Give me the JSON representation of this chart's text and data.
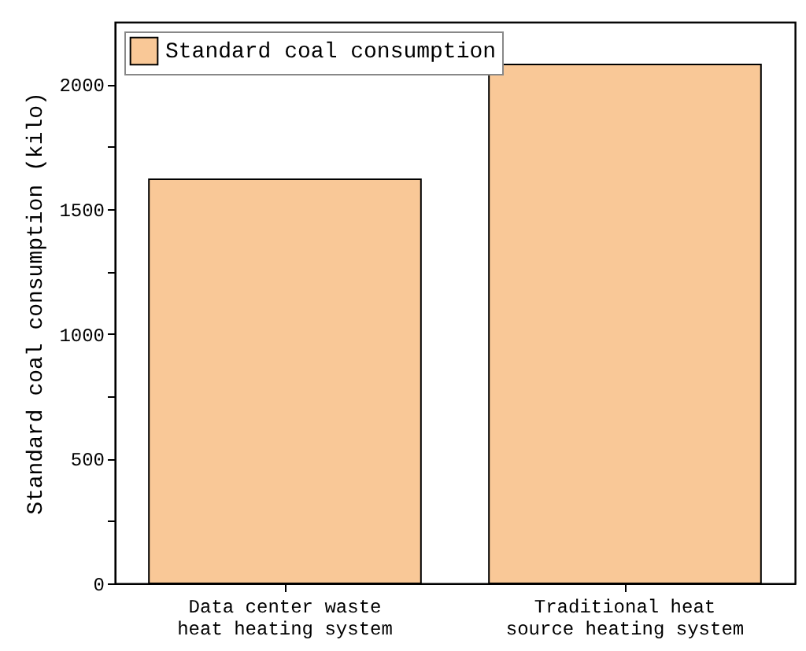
{
  "chart_data": {
    "type": "bar",
    "ylabel": "Standard coal consumption (kilo)",
    "categories": [
      "Data center waste heat heating system",
      "Traditional heat source heating system"
    ],
    "series": [
      {
        "name": "Standard coal consumption",
        "color": "#f9c897",
        "values": [
          1620,
          2080
        ]
      }
    ],
    "ylim": [
      0,
      2250
    ],
    "yticks": [
      0,
      {
        "value": 250,
        "label": null
      },
      500,
      {
        "value": 750,
        "label": null
      },
      1000,
      {
        "value": 1250,
        "label": null
      },
      1500,
      {
        "value": 1750,
        "label": null
      },
      2000
    ],
    "grid": false,
    "legend": "top left"
  }
}
